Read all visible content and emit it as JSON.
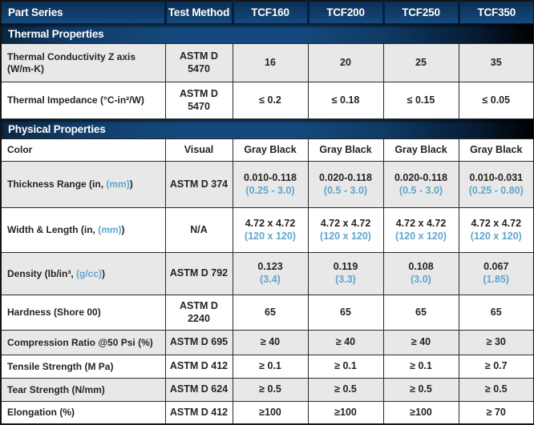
{
  "header": {
    "part_series": "Part Series",
    "test_method": "Test Method",
    "cols": [
      "TCF160",
      "TCF200",
      "TCF250",
      "TCF350"
    ]
  },
  "sections": {
    "thermal": {
      "title": "Thermal Properties"
    },
    "physical": {
      "title": "Physical Properties"
    }
  },
  "rows": {
    "thermal_conductivity": {
      "label": "Thermal Conductivity Z axis (W/m-K)",
      "method": "ASTM D 5470",
      "v": [
        "16",
        "20",
        "25",
        "35"
      ]
    },
    "thermal_impedance": {
      "label": "Thermal Impedance (°C-in²/W)",
      "method": "ASTM D 5470",
      "v": [
        "≤ 0.2",
        "≤ 0.18",
        "≤ 0.15",
        "≤ 0.05"
      ]
    },
    "color": {
      "label": "Color",
      "method": "Visual",
      "v": [
        "Gray Black",
        "Gray Black",
        "Gray Black",
        "Gray Black"
      ]
    },
    "thickness": {
      "label_pre": "Thickness Range (in, ",
      "label_metric": "(mm)",
      "label_post": ")",
      "method": "ASTM D 374",
      "v": [
        "0.010-0.118",
        "0.020-0.118",
        "0.020-0.118",
        "0.010-0.031"
      ],
      "m": [
        "(0.25 - 3.0)",
        "(0.5 - 3.0)",
        "(0.5 - 3.0)",
        "(0.25 - 0.80)"
      ]
    },
    "width_length": {
      "label_pre": "Width & Length (in, ",
      "label_metric": "(mm)",
      "label_post": ")",
      "method": "N/A",
      "v": [
        "4.72 x 4.72",
        "4.72 x 4.72",
        "4.72 x 4.72",
        "4.72 x 4.72"
      ],
      "m": [
        "(120 x 120)",
        "(120 x 120)",
        "(120 x 120)",
        "(120 x 120)"
      ]
    },
    "density": {
      "label_pre": "Density (lb/in³, ",
      "label_metric": "(g/cc)",
      "label_post": ")",
      "method": "ASTM D 792",
      "v": [
        "0.123",
        "0.119",
        "0.108",
        "0.067"
      ],
      "m": [
        "(3.4)",
        "(3.3)",
        "(3.0)",
        "(1.85)"
      ]
    },
    "hardness": {
      "label": "Hardness (Shore 00)",
      "method": "ASTM D 2240",
      "v": [
        "65",
        "65",
        "65",
        "65"
      ]
    },
    "compression": {
      "label": "Compression Ratio @50 Psi (%)",
      "method": "ASTM D 695",
      "v": [
        "≥ 40",
        "≥ 40",
        "≥ 40",
        "≥ 30"
      ]
    },
    "tensile": {
      "label": "Tensile Strength (M Pa)",
      "method": "ASTM D 412",
      "v": [
        "≥ 0.1",
        "≥ 0.1",
        "≥ 0.1",
        "≥ 0.7"
      ]
    },
    "tear": {
      "label": "Tear Strength (N/mm)",
      "method": "ASTM D 624",
      "v": [
        "≥ 0.5",
        "≥ 0.5",
        "≥ 0.5",
        "≥ 0.5"
      ]
    },
    "elongation": {
      "label": "Elongation (%)",
      "method": "ASTM D 412",
      "v": [
        "≥100",
        "≥100",
        "≥100",
        "≥ 70"
      ]
    }
  },
  "colors": {
    "header_navy": "#15497e",
    "section_bar_blue": "#15497d",
    "section_bar_fade": "#000000",
    "row_gray": "#e8e8e8",
    "metric_blue": "#5fa6cb",
    "text_dark": "#262321",
    "border_dark": "#2a2a2a"
  }
}
